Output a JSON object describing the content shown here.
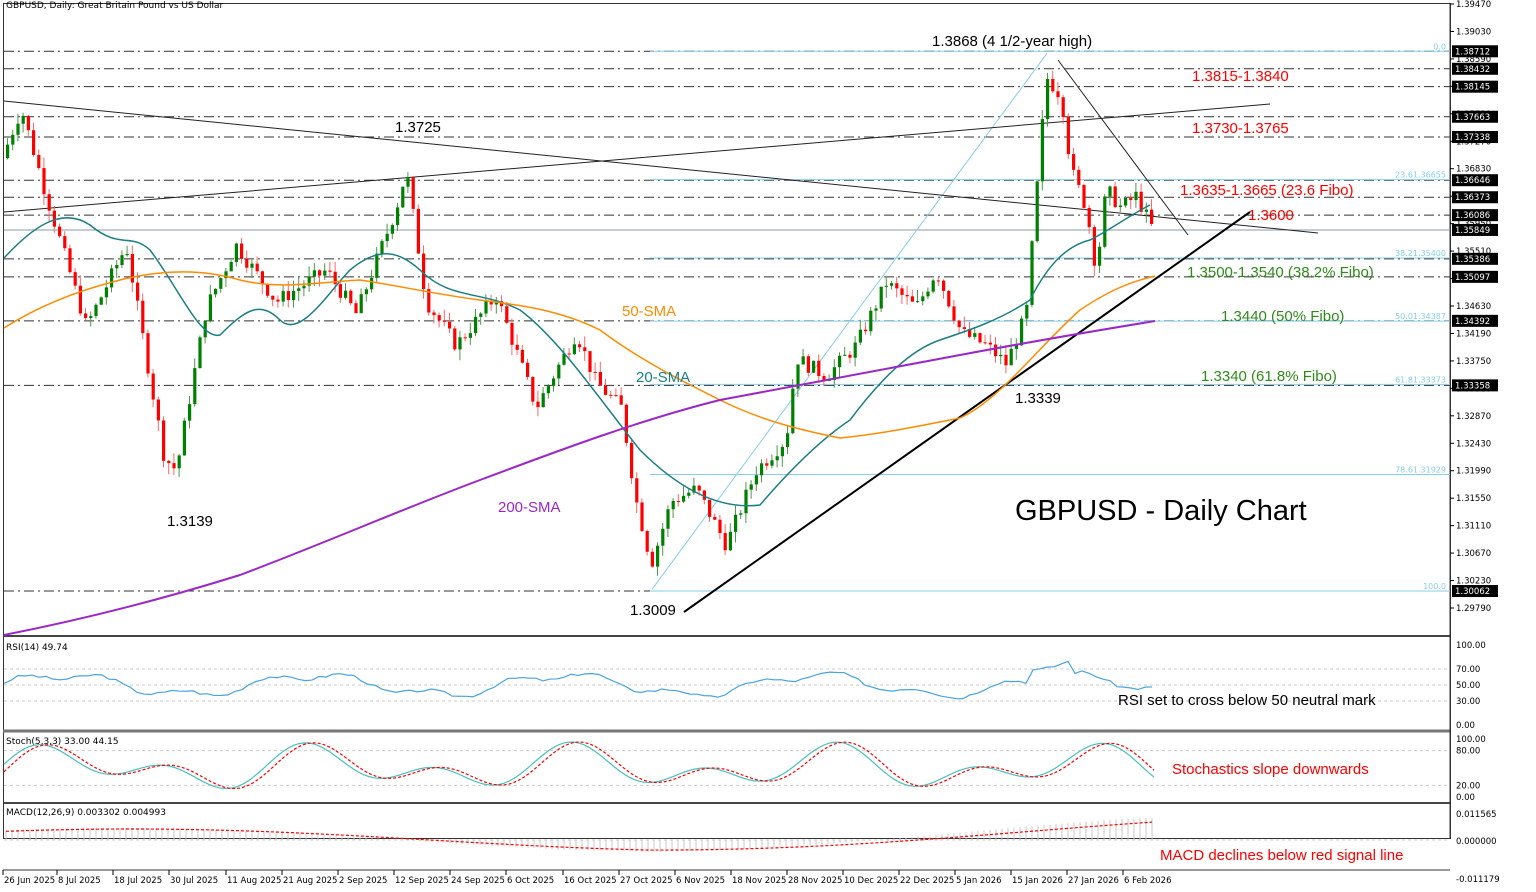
{
  "header": {
    "title": "GBPUSD, Daily:  Great Britain Pound vs US Dollar"
  },
  "chart_data": {
    "type": "candlestick",
    "title": "GBPUSD - Daily Chart",
    "symbol": "GBPUSD",
    "timeframe": "Daily",
    "x_ticks": [
      "26 Jun 2025",
      "8 Jul 2025",
      "18 Jul 2025",
      "30 Jul 2025",
      "11 Aug 2025",
      "21 Aug 2025",
      "2 Sep 2025",
      "12 Sep 2025",
      "24 Sep 2025",
      "6 Oct 2025",
      "16 Oct 2025",
      "27 Oct 2025",
      "6 Nov 2025",
      "18 Nov 2025",
      "28 Nov 2025",
      "10 Dec 2025",
      "22 Dec 2025",
      "5 Jan 2026",
      "15 Jan 2026",
      "27 Jan 2026",
      "6 Feb 2026"
    ],
    "y_ticks": [
      "1.39470",
      "1.39030",
      "1.38590",
      "1.38150",
      "1.37710",
      "1.37270",
      "1.36830",
      "1.36390",
      "1.35950",
      "1.35510",
      "1.35070",
      "1.34630",
      "1.34190",
      "1.33750",
      "1.33310",
      "1.32870",
      "1.32430",
      "1.31990",
      "1.31550",
      "1.31110",
      "1.30670",
      "1.30230",
      "1.29790"
    ],
    "price_tags": [
      "1.38712",
      "1.38432",
      "1.38145",
      "1.37663",
      "1.37338",
      "1.36646",
      "1.36373",
      "1.36086",
      "1.35849",
      "1.35386",
      "1.35097",
      "1.34392",
      "1.33358",
      "1.30062"
    ],
    "current_price": "1.35849",
    "fibonacci": [
      {
        "level": "0.0",
        "price": "1.38712"
      },
      {
        "level": "23.6",
        "price": "1.36655",
        "label": "23.61.36655"
      },
      {
        "level": "38.2",
        "price": "1.35400",
        "label": "38.21.35400"
      },
      {
        "level": "50.0",
        "price": "1.34387",
        "label": "50.01.34387"
      },
      {
        "level": "61.8",
        "price": "1.33373",
        "label": "61.81.33373"
      },
      {
        "level": "78.6",
        "price": "1.31929",
        "label": "78.61.31929"
      },
      {
        "level": "100.0",
        "price": "1.30062"
      }
    ],
    "annotations": {
      "high": "1.3868 (4 1/2-year high)",
      "r1": "1.3815-1.3840",
      "r2": "1.3730-1.3765",
      "r3": "1.3635-1.3665 (23.6 Fibo)",
      "r4": "1.3600",
      "s1": "1.3500-1.3540 (38.2% Fibo)",
      "s2": "1.3440 (50% Fibo)",
      "s3": "1.3340 (61.8% Fibo)",
      "p1725": "1.3725",
      "p1339": "1.3339",
      "p3139": "1.3139",
      "p3009": "1.3009",
      "sma20": "20-SMA",
      "sma50": "50-SMA",
      "sma200": "200-SMA"
    },
    "series": [
      {
        "name": "20-SMA",
        "color": "#1a7f86"
      },
      {
        "name": "50-SMA",
        "color": "#ff8c00"
      },
      {
        "name": "200-SMA",
        "color": "#9b27c9"
      }
    ],
    "key_levels": {
      "high": 1.3868,
      "low": 1.3009,
      "swing_low_jul": 1.3139,
      "swing_high_sep": 1.3725,
      "higher_low_jan": 1.3339
    }
  },
  "rsi": {
    "label": "RSI(14) 49.74",
    "value": 49.74,
    "ticks": [
      "100.00",
      "70.00",
      "50.00",
      "30.00",
      "0.00"
    ],
    "note": "RSI set to cross below 50 neutral mark"
  },
  "stoch": {
    "label": "Stoch(5,3,3) 33.00 44.15",
    "k": 33.0,
    "d": 44.15,
    "ticks": [
      "100.00",
      "80.00",
      "20.00",
      "0.00"
    ],
    "note": "Stochastics slope downwards"
  },
  "macd": {
    "label": "MACD(12,26,9) 0.003302 0.004993",
    "main": 0.003302,
    "signal": 0.004993,
    "ticks": [
      "0.011565",
      "0.000000",
      "-0.011179"
    ],
    "note": "MACD declines below red signal line"
  },
  "colors": {
    "bull": "#008000",
    "bear": "#ff0000",
    "fibo": "#87ceeb",
    "ann_red": "#ff0000",
    "ann_green": "#2e8b1a",
    "rsi": "#4aa3df",
    "stoch_k": "#48c0c0",
    "stoch_d": "#ff0000"
  }
}
